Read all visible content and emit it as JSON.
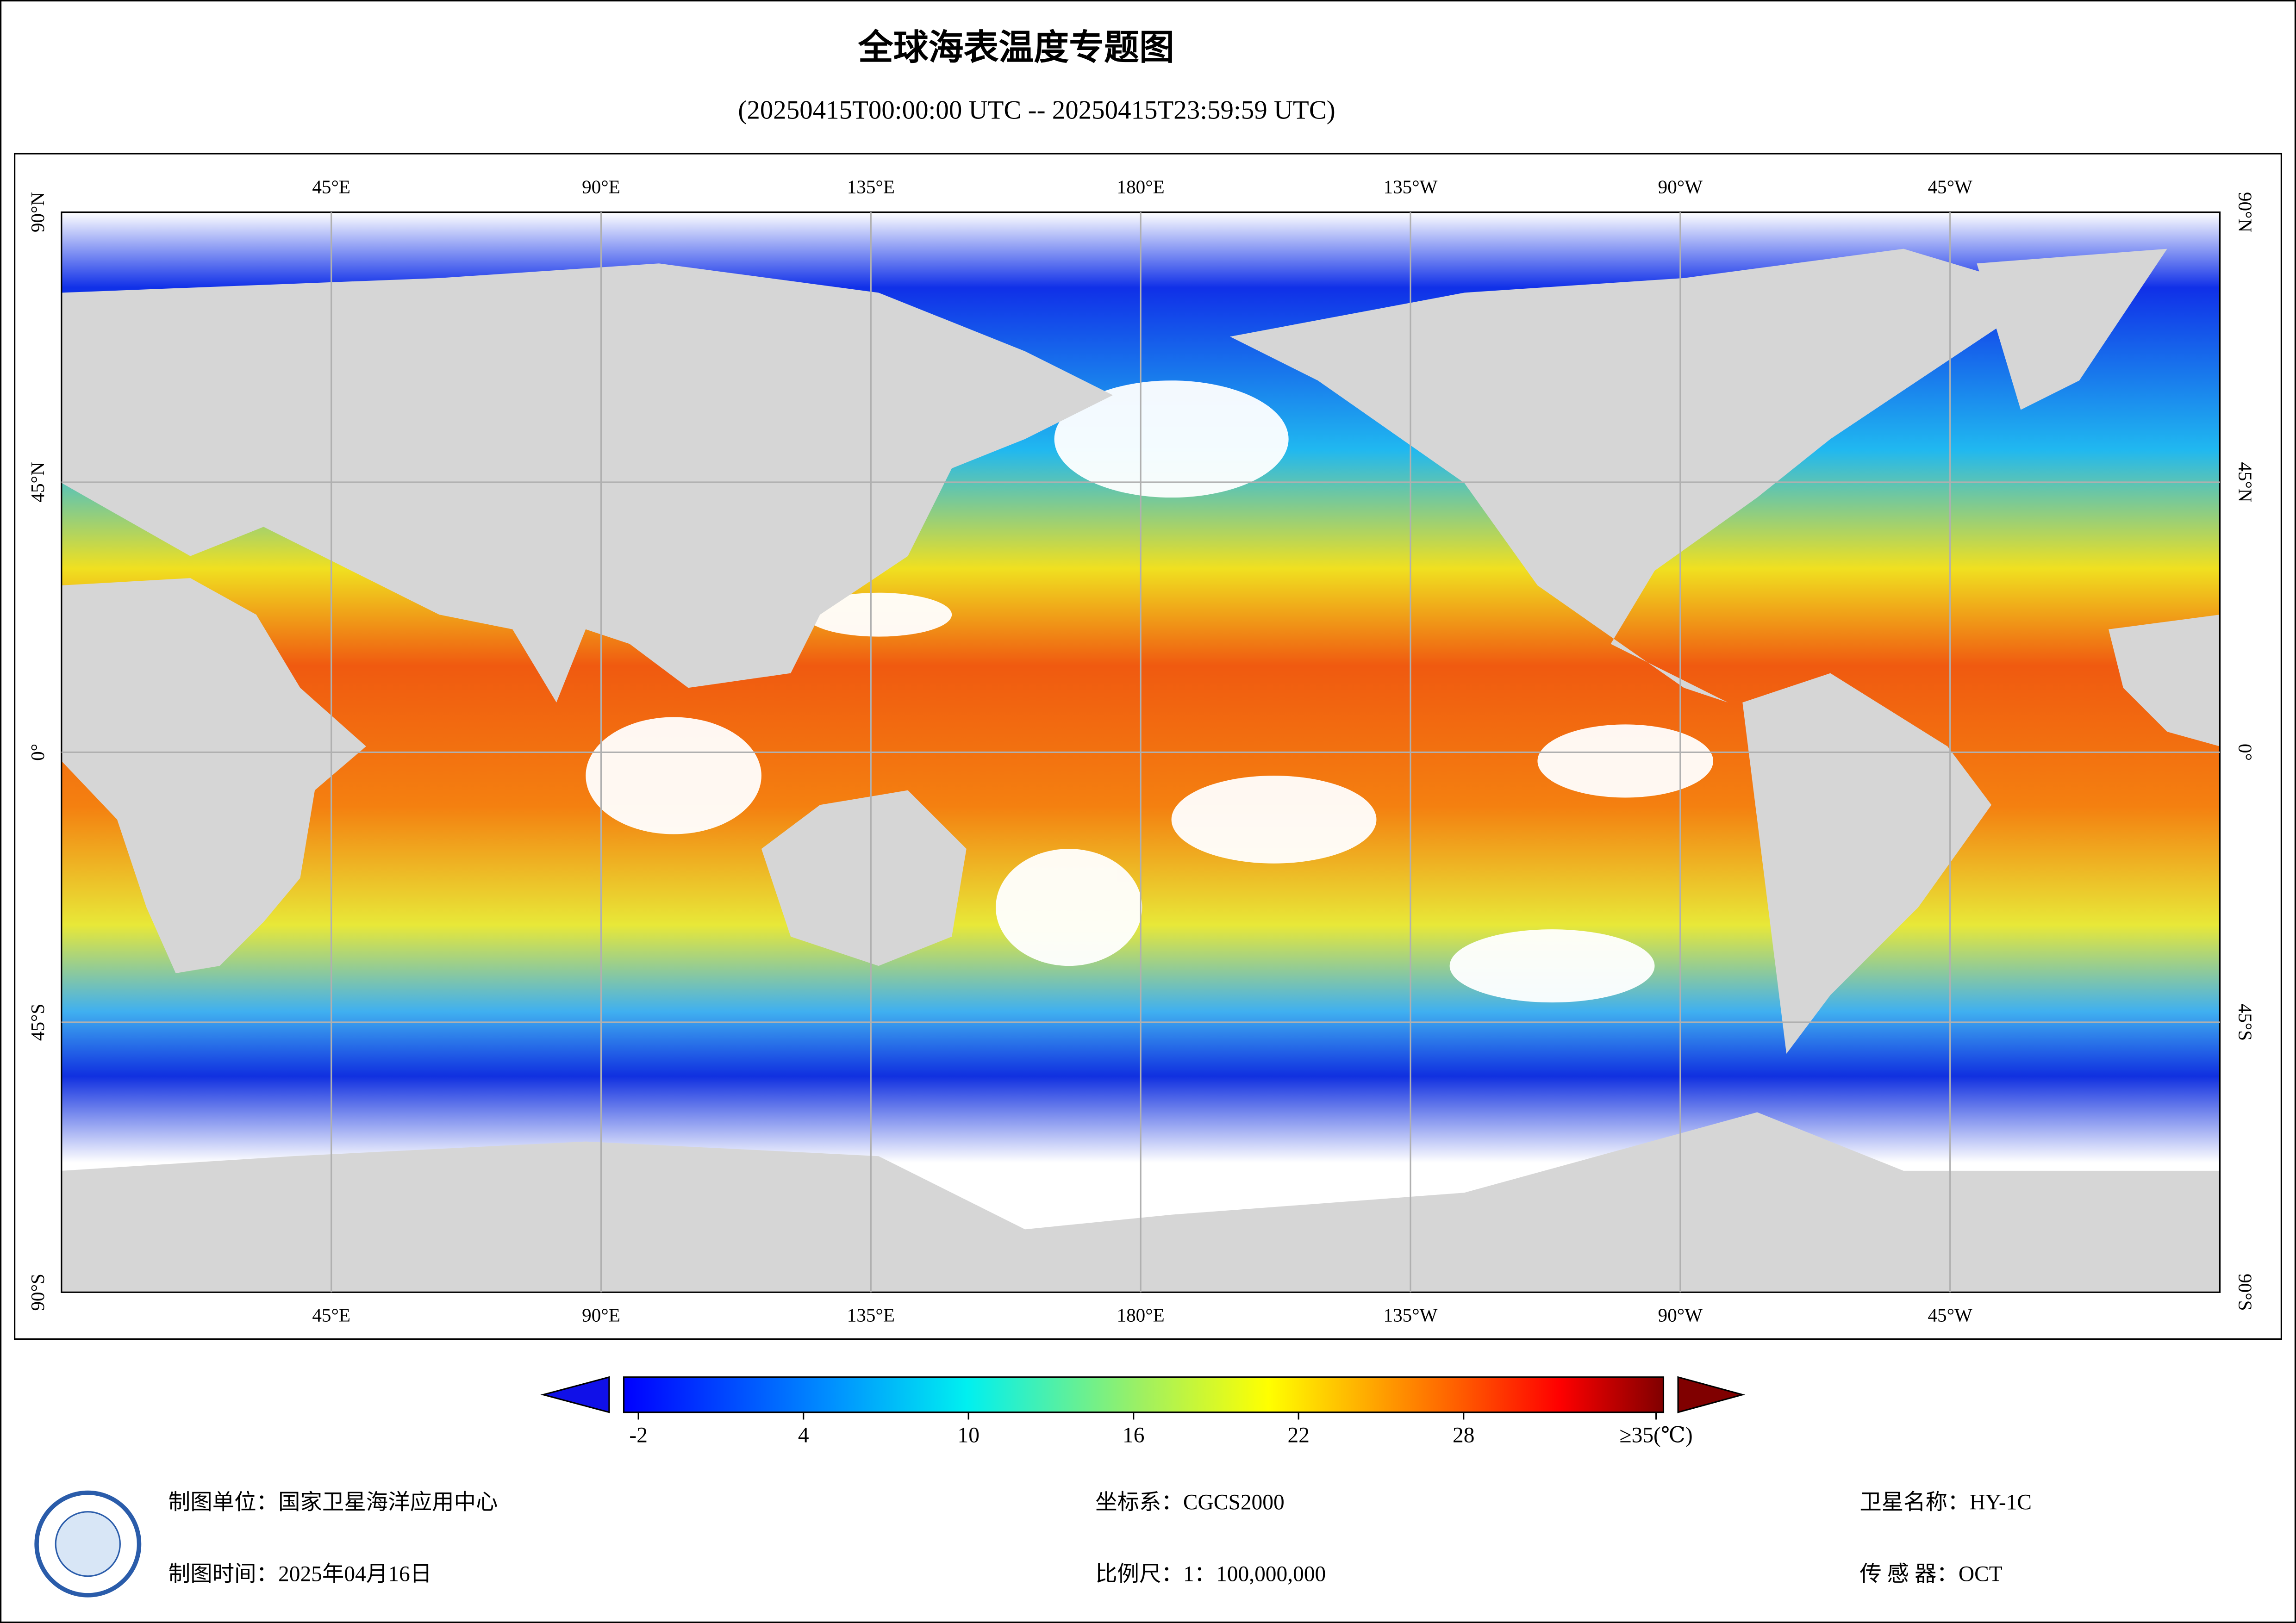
{
  "title": "全球海表温度专题图",
  "subtitle": "(20250415T00:00:00 UTC -- 20250415T23:59:59 UTC)",
  "map": {
    "lonlim": [
      0,
      360
    ],
    "latlim": [
      -90,
      90
    ],
    "lonticks": [
      {
        "value": 45,
        "label": "45°E"
      },
      {
        "value": 90,
        "label": "90°E"
      },
      {
        "value": 135,
        "label": "135°E"
      },
      {
        "value": 180,
        "label": "180°E"
      },
      {
        "value": 225,
        "label": "135°W"
      },
      {
        "value": 270,
        "label": "90°W"
      },
      {
        "value": 315,
        "label": "45°W"
      }
    ],
    "latticks": [
      {
        "value": 90,
        "label": "90°N"
      },
      {
        "value": 45,
        "label": "45°N"
      },
      {
        "value": 0,
        "label": "0°"
      },
      {
        "value": -45,
        "label": "45°S"
      },
      {
        "value": -90,
        "label": "90°S"
      }
    ],
    "grid": true
  },
  "colorbar": {
    "range": [
      -2,
      35
    ],
    "ticks": [
      -2,
      4,
      10,
      16,
      22,
      28,
      {
        "value": 35,
        "label": "≥35(℃)"
      }
    ]
  },
  "footer": {
    "organization": "制图单位：国家卫星海洋应用中心",
    "date": "制图时间：2025年04月16日",
    "crs": "坐标系：CGCS2000",
    "scale": "比例尺：1：100,000,000",
    "satellite": "卫星名称：HY-1C",
    "sensor": "传 感 器：OCT"
  }
}
